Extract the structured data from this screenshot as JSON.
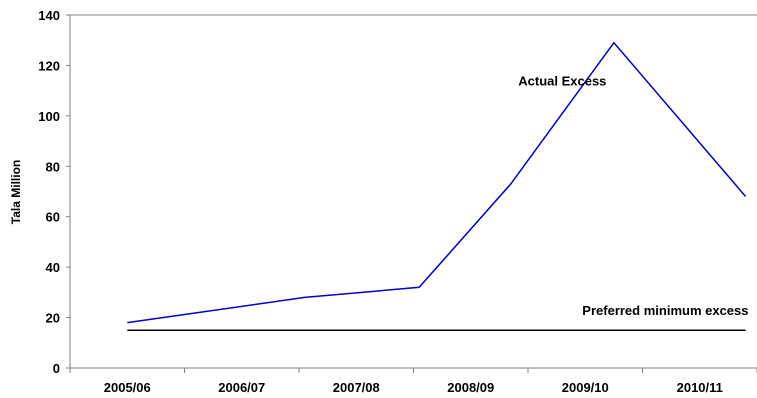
{
  "chart_data": {
    "type": "line",
    "title": "",
    "xlabel": "",
    "ylabel": "Tala Million",
    "categories": [
      "2005/06",
      "2006/07",
      "2007/08",
      "2008/09",
      "2009/10",
      "2010/11"
    ],
    "x_positions": [
      "2005/06",
      0.55,
      "2007/08",
      3.35,
      4.25,
      5.4
    ],
    "x_index": [
      0,
      1.55,
      2.55,
      3.35,
      4.25,
      5.4
    ],
    "series": [
      {
        "name": "Actual Excess",
        "color": "#0000cc",
        "x": [
          0,
          1.55,
          2.55,
          3.35,
          4.25,
          5.4
        ],
        "values": [
          18,
          28,
          32,
          73,
          129,
          68
        ]
      },
      {
        "name": "Preferred minimum excess",
        "color": "#000000",
        "x": [
          0,
          5.4
        ],
        "values": [
          15,
          15
        ]
      }
    ],
    "annotations": [
      {
        "text": "Actual Excess",
        "x": 3.8,
        "y": 112
      },
      {
        "text": "Preferred minimum excess",
        "x": 4.7,
        "y": 21
      }
    ],
    "ylim": [
      0,
      140
    ],
    "yticks": [
      0,
      20,
      40,
      60,
      80,
      100,
      120,
      140
    ],
    "grid": false,
    "legend": "none"
  }
}
